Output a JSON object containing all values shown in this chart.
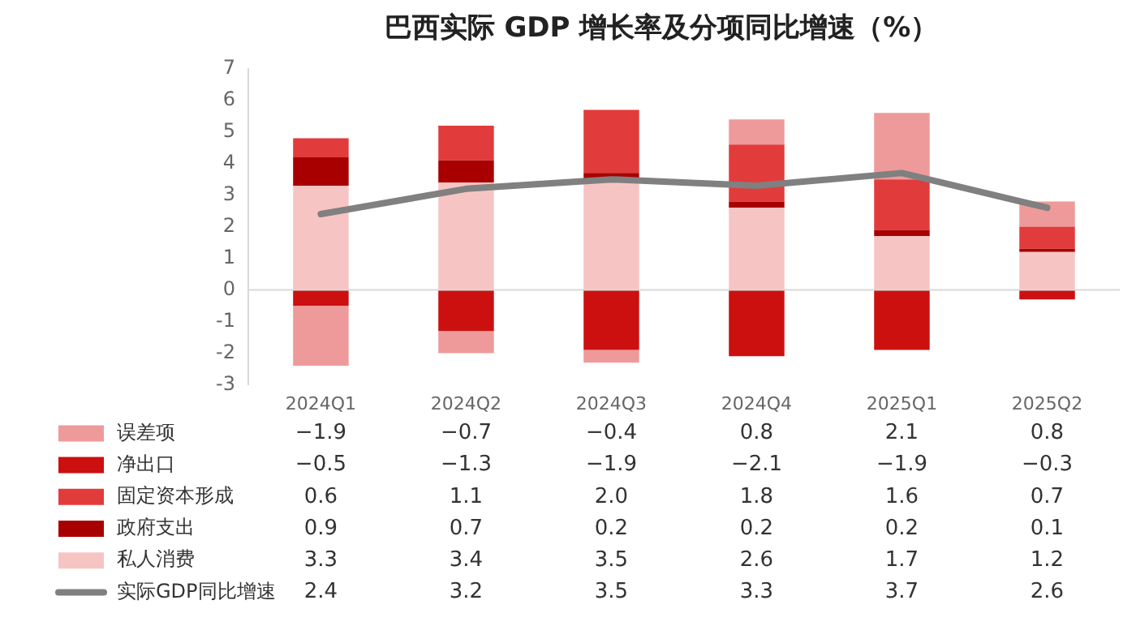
{
  "chart_data": {
    "type": "bar",
    "title": "巴西实际 GDP 增长率及分项同比增速（%）",
    "stacked": true,
    "grid": false,
    "legend": "bottom",
    "marker": "none",
    "categories": [
      "2024Q1",
      "2024Q2",
      "2024Q3",
      "2024Q4",
      "2025Q1",
      "2025Q2"
    ],
    "ref_lines": [
      {
        "axis": "y",
        "value": 0,
        "color": "#d9d9d9"
      }
    ],
    "ylim": [
      -3,
      7
    ],
    "yticks": [
      -3,
      -2,
      -1,
      0,
      1,
      2,
      3,
      4,
      5,
      6,
      7
    ],
    "series": [
      {
        "name": "私人消费",
        "color": "#f7c4c4",
        "values": [
          3.3,
          3.4,
          3.5,
          2.6,
          1.7,
          1.2
        ],
        "value_labels": [
          "3.3",
          "3.4",
          "3.5",
          "2.6",
          "1.7",
          "1.2"
        ]
      },
      {
        "name": "政府支出",
        "color": "#a80000",
        "values": [
          0.9,
          0.7,
          0.2,
          0.2,
          0.2,
          0.1
        ],
        "value_labels": [
          "0.9",
          "0.7",
          "0.2",
          "0.2",
          "0.2",
          "0.1"
        ]
      },
      {
        "name": "固定资本形成",
        "color": "#e23b3b",
        "values": [
          0.6,
          1.1,
          2.0,
          1.8,
          1.6,
          0.7
        ],
        "value_labels": [
          "0.6",
          "1.1",
          "2.0",
          "1.8",
          "1.6",
          "0.7"
        ]
      },
      {
        "name": "净出口",
        "color": "#cc1010",
        "values": [
          -0.5,
          -1.3,
          -1.9,
          -2.1,
          -1.9,
          -0.3
        ],
        "value_labels": [
          "−0.5",
          "−1.3",
          "−1.9",
          "−2.1",
          "−1.9",
          "−0.3"
        ]
      },
      {
        "name": "误差项",
        "color": "#ee9a9a",
        "values": [
          -1.9,
          -0.7,
          -0.4,
          0.8,
          2.1,
          0.8
        ],
        "value_labels": [
          "−1.9",
          "−0.7",
          "−0.4",
          "0.8",
          "2.1",
          "0.8"
        ]
      },
      {
        "name": "实际GDP同比增速",
        "type": "line",
        "color": "#808080",
        "values": [
          2.4,
          3.2,
          3.5,
          3.3,
          3.7,
          2.6
        ],
        "value_labels": [
          "2.4",
          "3.2",
          "3.5",
          "3.3",
          "3.7",
          "2.6"
        ]
      }
    ]
  }
}
